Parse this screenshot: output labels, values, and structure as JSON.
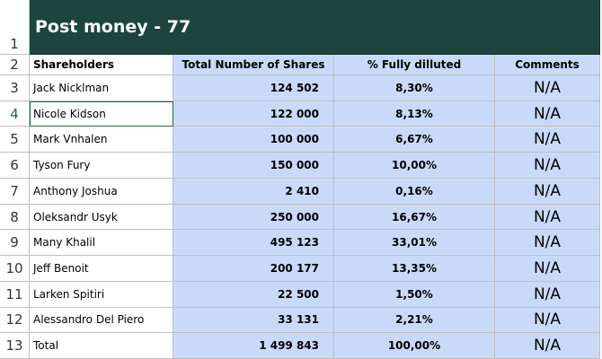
{
  "title": "Post money - 77",
  "row_numbers": [
    1,
    2,
    3,
    4,
    5,
    6,
    7,
    8,
    9,
    10,
    11,
    12,
    13
  ],
  "table": {
    "header": [
      "Shareholders",
      "Total Number of Shares",
      "% Fully dilluted",
      "Comments"
    ],
    "rows": [
      [
        "Jack Nicklman",
        "124 502",
        "8,30%",
        "N/A"
      ],
      [
        "Nicole Kidson",
        "122 000",
        "8,13%",
        "N/A"
      ],
      [
        "Mark Vnhalen",
        "100 000",
        "6,67%",
        "N/A"
      ],
      [
        "Tyson Fury",
        "150 000",
        "10,00%",
        "N/A"
      ],
      [
        "Anthony Joshua",
        "2 410",
        "0,16%",
        "N/A"
      ],
      [
        "Oleksandr Usyk",
        "250 000",
        "16,67%",
        "N/A"
      ],
      [
        "Many Khalil",
        "495 123",
        "33,01%",
        "N/A"
      ],
      [
        "Jeff Benoit",
        "200 177",
        "13,35%",
        "N/A"
      ],
      [
        "Larken Spitiri",
        "22 500",
        "1,50%",
        "N/A"
      ],
      [
        "Alessandro Del Piero",
        "33 131",
        "2,21%",
        "N/A"
      ],
      [
        "Total",
        "1 499 843",
        "100,00%",
        "N/A"
      ]
    ]
  }
}
